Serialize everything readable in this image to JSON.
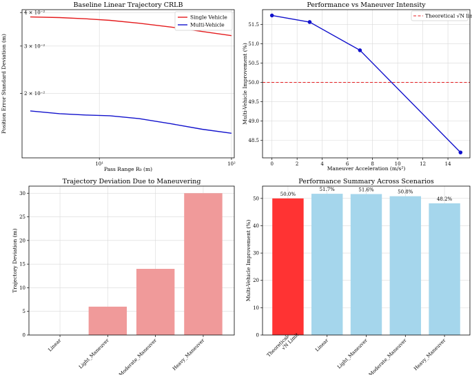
{
  "chart_data": [
    {
      "type": "line",
      "title": "Baseline Linear Trajectory CRLB",
      "xlabel": "Pass Range R₀ (m)",
      "ylabel": "Position Error Standard Deviation (m)",
      "xscale": "log",
      "yscale": "log",
      "xlim": [
        2.6,
        105
      ],
      "ylim": [
        0.0115,
        0.041
      ],
      "x_ticks": [
        {
          "value": 10,
          "label": "10¹"
        },
        {
          "value": 100,
          "label": "10²"
        }
      ],
      "y_ticks": [
        {
          "value": 0.02,
          "label": "2 × 10⁻²"
        },
        {
          "value": 0.03,
          "label": "3 × 10⁻²"
        },
        {
          "value": 0.04,
          "label": "4 × 10⁻²"
        }
      ],
      "grid": true,
      "legend": "upper right",
      "x": [
        3,
        5,
        8,
        12,
        20,
        35,
        60,
        100
      ],
      "series": [
        {
          "name": "Single Vehicle",
          "color": "#e41a1c",
          "values": [
            0.0385,
            0.0383,
            0.0379,
            0.0374,
            0.0365,
            0.0353,
            0.034,
            0.0328
          ]
        },
        {
          "name": "Multi-Vehicle",
          "color": "#1111cc",
          "values": [
            0.0172,
            0.0168,
            0.0166,
            0.0165,
            0.0161,
            0.0154,
            0.0147,
            0.0142
          ]
        }
      ]
    },
    {
      "type": "line",
      "title": "Performance vs Maneuver Intensity",
      "xlabel": "Maneuver Acceleration (m/s²)",
      "ylabel": "Multi-Vehicle Improvement (%)",
      "xlim": [
        -0.75,
        15.75
      ],
      "ylim": [
        48.05,
        51.88
      ],
      "x_ticks": [
        0,
        2,
        4,
        6,
        8,
        10,
        12,
        14
      ],
      "y_ticks": [
        "48.5",
        "49.0",
        "49.5",
        "50.0",
        "50.5",
        "51.0",
        "51.5"
      ],
      "grid": true,
      "legend": "upper right",
      "reference_line": {
        "name": "Theoretical √N limit",
        "value": 50.0,
        "color": "#e41a1c"
      },
      "series": [
        {
          "name": "",
          "color": "#1111cc",
          "x": [
            0,
            3,
            7,
            15
          ],
          "values": [
            51.73,
            51.56,
            50.83,
            48.19
          ]
        }
      ]
    },
    {
      "type": "bar",
      "title": "Trajectory Deviation Due to Maneuvering",
      "xlabel": "",
      "ylabel": "Trajectory Deviation (m)",
      "ylim": [
        0,
        31.5
      ],
      "y_ticks": [
        0,
        5,
        10,
        15,
        20,
        25,
        30
      ],
      "grid": true,
      "color": "#f09a9a",
      "categories": [
        "Linear",
        "Light_Maneuver",
        "Moderate_Maneuver",
        "Heavy_Maneuver"
      ],
      "values": [
        0,
        6,
        14,
        30
      ]
    },
    {
      "type": "bar",
      "title": "Performance Summary Across Scenarios",
      "xlabel": "",
      "ylabel": "Multi-Vehicle Improvement (%)",
      "ylim": [
        0,
        54.5
      ],
      "y_ticks": [
        0,
        10,
        20,
        30,
        40,
        50
      ],
      "grid": true,
      "categories": [
        [
          "Theoretical",
          "√N Limit"
        ],
        "Linear",
        "Light_Maneuver",
        "Moderate_Maneuver",
        "Heavy_Maneuver"
      ],
      "values": [
        50.0,
        51.7,
        51.6,
        50.8,
        48.2
      ],
      "data_labels": [
        "50.0%",
        "51.7%",
        "51.6%",
        "50.8%",
        "48.2%"
      ],
      "colors": [
        "#ff3333",
        "#a5d6ec",
        "#a5d6ec",
        "#a5d6ec",
        "#a5d6ec"
      ]
    }
  ]
}
